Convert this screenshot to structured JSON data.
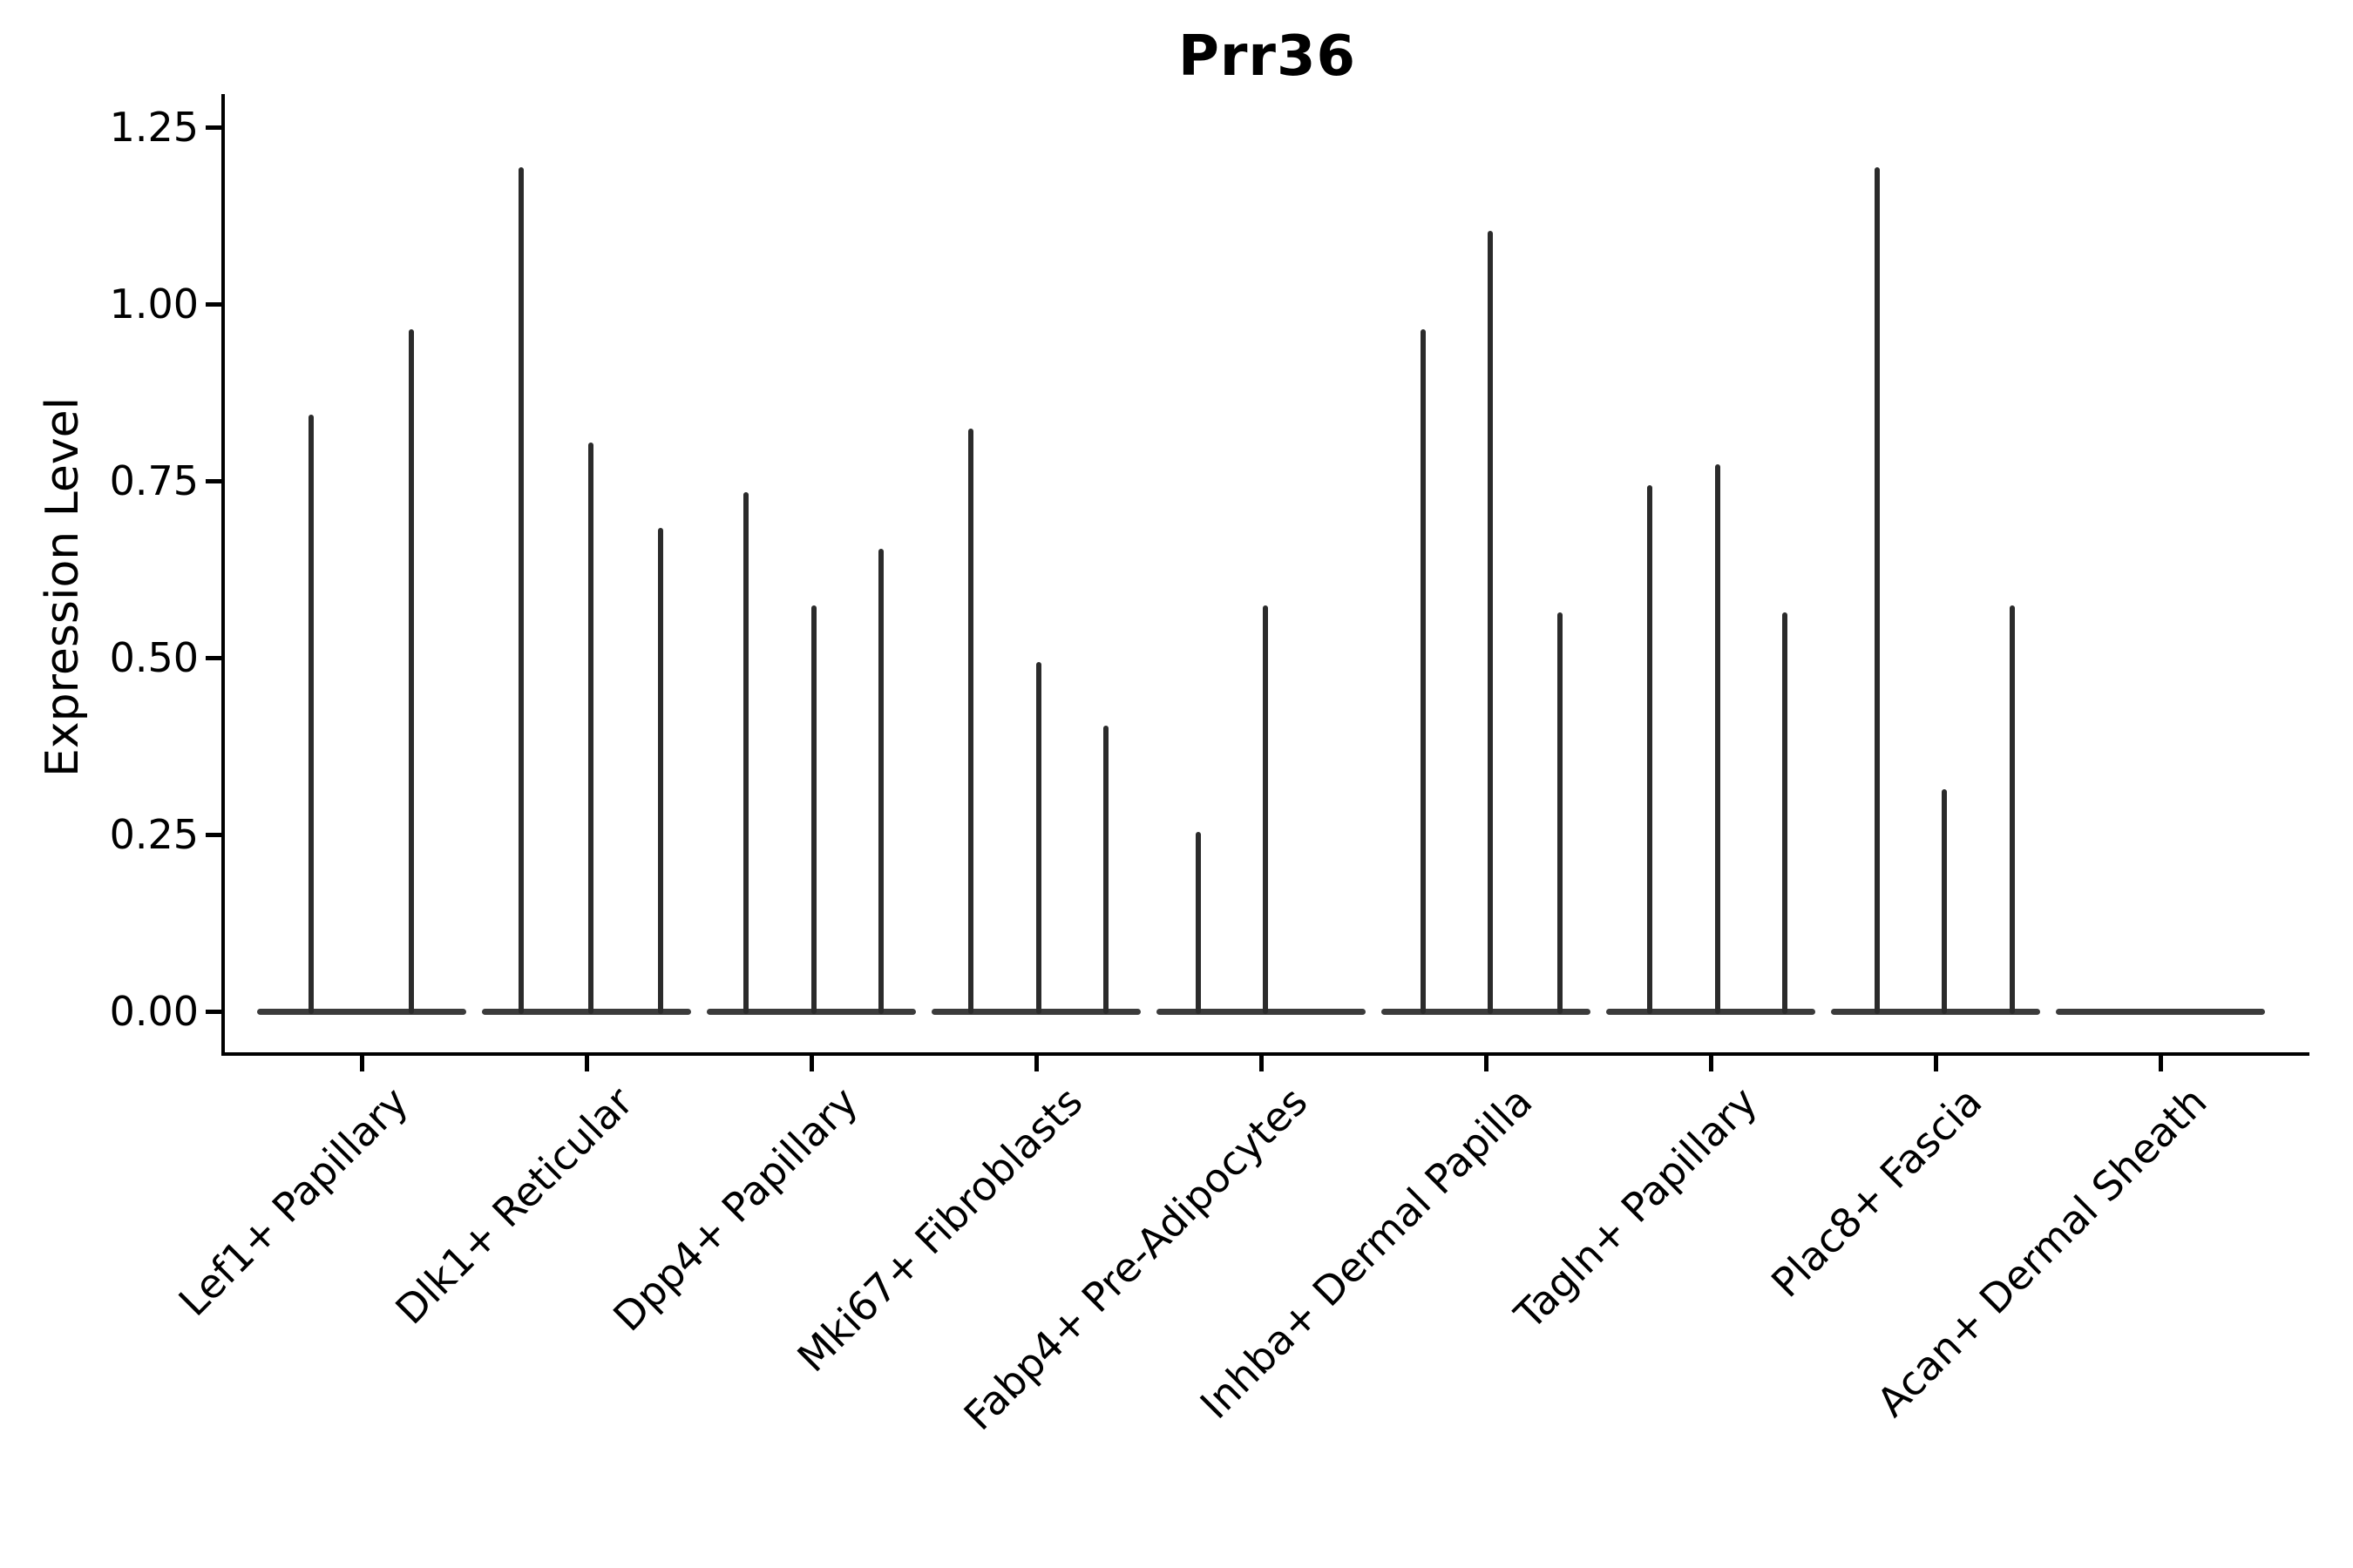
{
  "title": "Prr36",
  "y_axis": {
    "label": "Expression Level",
    "tick_labels": [
      "0.00",
      "0.25",
      "0.50",
      "0.75",
      "1.00",
      "1.25"
    ]
  },
  "colors": {
    "spike_line": "#2b2b2b",
    "baseline_line": "#3b3b3b",
    "spine": "#000000",
    "text": "#000000",
    "background": "#ffffff"
  },
  "chart_data": {
    "type": "violin",
    "title": "Prr36",
    "xlabel": "",
    "ylabel": "Expression Level",
    "ylim": [
      0,
      1.29
    ],
    "yticks": [
      0,
      0.25,
      0.5,
      0.75,
      1.0,
      1.25
    ],
    "grid": false,
    "legend": "none",
    "description": "Violin plot of Prr36 expression; most cells at 0 giving flat violin bodies at baseline with thin vertical spikes for expressing cells. Spike 'value' = expression level at spike tip; 'pos' = horizontal position of the spike as a fraction of the category slot width.",
    "categories": [
      "Lef1+ Papillary",
      "Dlk1+ Reticular",
      "Dpp4+ Papillary",
      "Mki67+ Fibroblasts",
      "Fabp4+ Pre-Adipocytes",
      "Inhba+ Dermal Papilla",
      "Tagln+ Papillary",
      "Plac8+ Fascia",
      "Acan+ Dermal Sheath"
    ],
    "groups": [
      {
        "label": "Lef1+ Papillary",
        "baseline": 0,
        "spikes": [
          {
            "value": 0.84,
            "pos": 0.275
          },
          {
            "value": 0.96,
            "pos": 0.72
          }
        ]
      },
      {
        "label": "Dlk1+ Reticular",
        "baseline": 0,
        "spikes": [
          {
            "value": 1.19,
            "pos": 0.21
          },
          {
            "value": 0.8,
            "pos": 0.52
          },
          {
            "value": 0.68,
            "pos": 0.83
          }
        ]
      },
      {
        "label": "Dpp4+ Papillary",
        "baseline": 0,
        "spikes": [
          {
            "value": 0.73,
            "pos": 0.21
          },
          {
            "value": 0.57,
            "pos": 0.51
          },
          {
            "value": 0.65,
            "pos": 0.81
          }
        ]
      },
      {
        "label": "Mki67+ Fibroblasts",
        "baseline": 0,
        "spikes": [
          {
            "value": 0.82,
            "pos": 0.21
          },
          {
            "value": 0.49,
            "pos": 0.51
          },
          {
            "value": 0.4,
            "pos": 0.81
          }
        ]
      },
      {
        "label": "Fabp4+ Pre-Adipocytes",
        "baseline": 0,
        "spikes": [
          {
            "value": 0.25,
            "pos": 0.22
          },
          {
            "value": 0.57,
            "pos": 0.52
          }
        ]
      },
      {
        "label": "Inhba+ Dermal Papilla",
        "baseline": 0,
        "spikes": [
          {
            "value": 0.96,
            "pos": 0.22
          },
          {
            "value": 1.1,
            "pos": 0.52
          },
          {
            "value": 0.56,
            "pos": 0.83
          }
        ]
      },
      {
        "label": "Tagln+ Papillary",
        "baseline": 0,
        "spikes": [
          {
            "value": 0.74,
            "pos": 0.23
          },
          {
            "value": 0.77,
            "pos": 0.53
          },
          {
            "value": 0.56,
            "pos": 0.83
          }
        ]
      },
      {
        "label": "Plac8+ Fascia",
        "baseline": 0,
        "spikes": [
          {
            "value": 1.19,
            "pos": 0.24
          },
          {
            "value": 0.31,
            "pos": 0.54
          },
          {
            "value": 0.57,
            "pos": 0.84
          }
        ]
      },
      {
        "label": "Acan+ Dermal Sheath",
        "baseline": 0,
        "spikes": []
      }
    ]
  }
}
